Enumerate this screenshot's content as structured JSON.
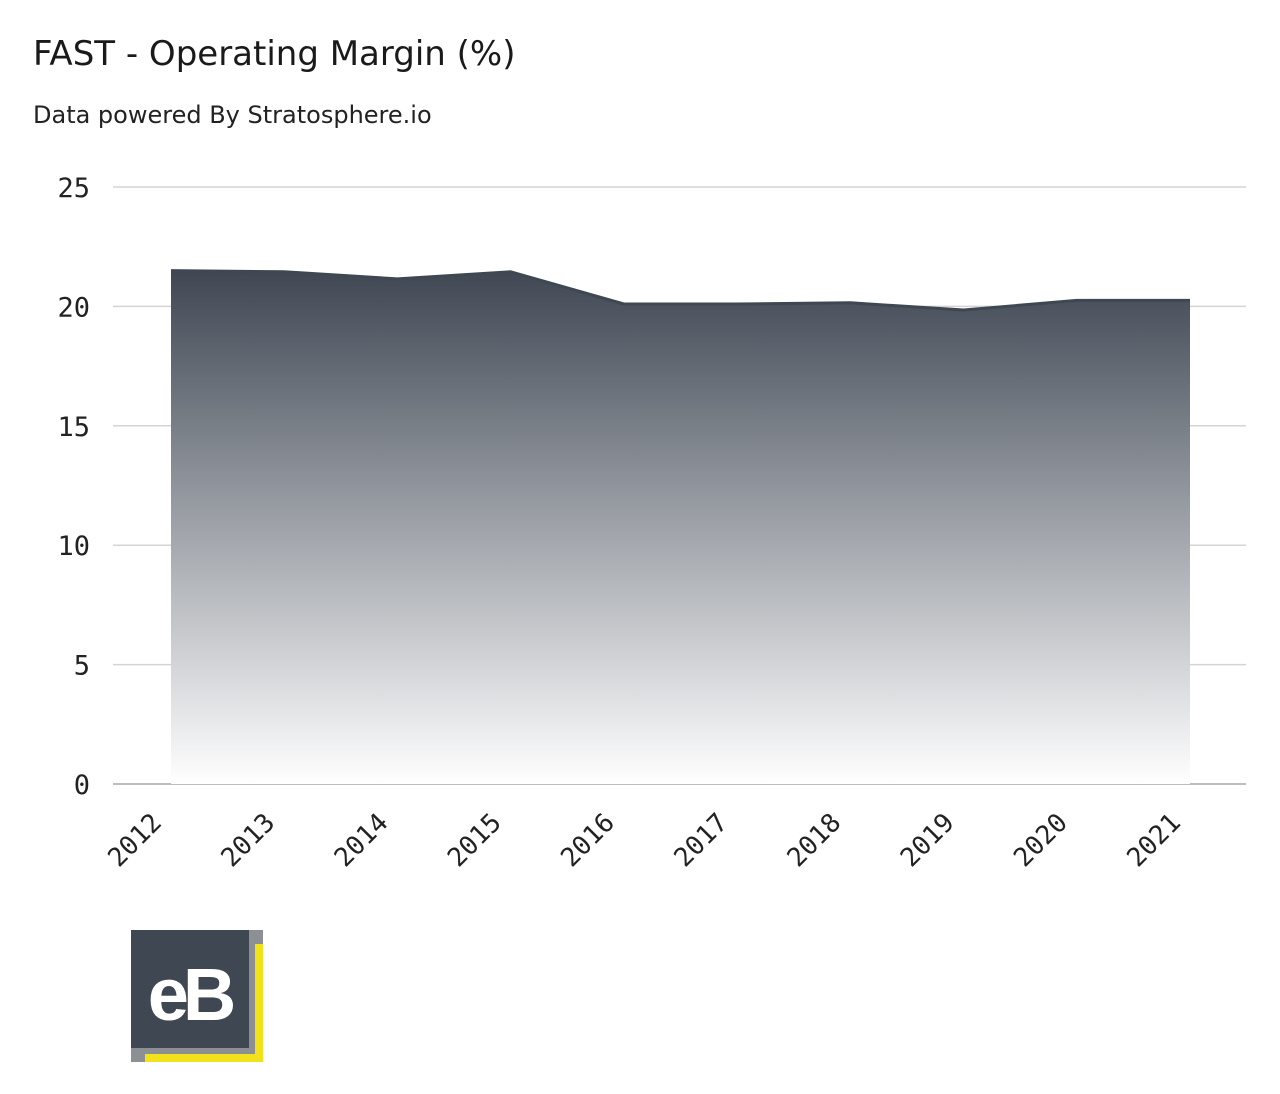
{
  "header": {
    "title": "FAST - Operating Margin (%)",
    "subtitle": "Data powered By Stratosphere.io"
  },
  "logo": {
    "text": "eB",
    "colors": {
      "dark": "#3f4753",
      "gray": "#8c8f94",
      "yellow": "#f2e21c"
    }
  },
  "chart_data": {
    "type": "area",
    "title": "FAST - Operating Margin (%)",
    "xlabel": "",
    "ylabel": "",
    "categories": [
      "2012",
      "2013",
      "2014",
      "2015",
      "2016",
      "2017",
      "2018",
      "2019",
      "2020",
      "2021"
    ],
    "series": [
      {
        "values": [
          21.5,
          21.45,
          21.15,
          21.45,
          20.1,
          20.1,
          20.15,
          19.85,
          20.25,
          20.25
        ]
      }
    ],
    "ylim": [
      0,
      25
    ],
    "yticks": [
      0,
      5,
      10,
      15,
      20,
      25
    ],
    "grid": true,
    "colors": {
      "fill_top": "#3f4753",
      "fill_bottom": "#ffffff",
      "line": "#3f4753",
      "grid": "#d4d4d4",
      "axis": "#bdbdbd"
    }
  }
}
